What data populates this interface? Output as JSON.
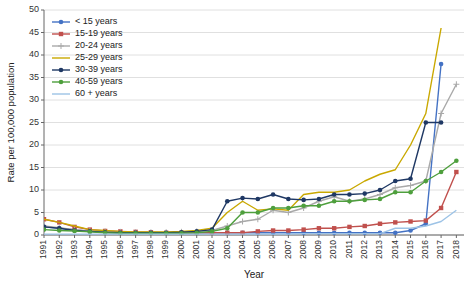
{
  "chart_data": {
    "type": "line",
    "x": [
      1991,
      1992,
      1993,
      1994,
      1995,
      1996,
      1997,
      1998,
      1999,
      2000,
      2001,
      2002,
      2003,
      2004,
      2005,
      2006,
      2007,
      2008,
      2009,
      2010,
      2011,
      2012,
      2013,
      2014,
      2015,
      2016,
      2017,
      2018
    ],
    "series": [
      {
        "name": "< 15 years",
        "color": "#4472C4",
        "marker": "circle",
        "values": [
          1.8,
          1.5,
          1.2,
          0.8,
          0.7,
          0.5,
          0.4,
          0.4,
          0.4,
          0.5,
          0.5,
          0.5,
          0.5,
          0.5,
          0.5,
          0.5,
          0.5,
          0.5,
          0.5,
          0.5,
          0.5,
          0.5,
          0.5,
          0.5,
          1.0,
          2.5,
          38.0,
          null
        ]
      },
      {
        "name": "15-19 years",
        "color": "#C0504D",
        "marker": "square",
        "values": [
          3.5,
          2.8,
          1.8,
          1.2,
          0.9,
          0.8,
          0.7,
          0.6,
          0.5,
          0.5,
          0.5,
          0.5,
          0.5,
          0.5,
          0.8,
          1.0,
          1.0,
          1.2,
          1.5,
          1.5,
          1.8,
          2.0,
          2.5,
          2.8,
          3.0,
          3.2,
          6.0,
          14.0
        ]
      },
      {
        "name": "20-24 years",
        "color": "#A9A9A9",
        "marker": "plus",
        "values": [
          2.0,
          1.6,
          1.2,
          0.9,
          0.8,
          0.7,
          0.6,
          0.6,
          0.6,
          0.7,
          0.8,
          1.0,
          2.0,
          3.0,
          3.5,
          5.5,
          5.0,
          6.0,
          7.5,
          8.5,
          7.5,
          8.0,
          9.0,
          10.5,
          11.0,
          12.0,
          27.0,
          33.5
        ]
      },
      {
        "name": "25-29 years",
        "color": "#C9A800",
        "marker": "none",
        "values": [
          3.5,
          2.8,
          2.0,
          1.2,
          1.0,
          0.8,
          0.7,
          0.7,
          0.7,
          0.8,
          1.0,
          1.5,
          5.0,
          7.5,
          5.5,
          5.8,
          5.5,
          9.0,
          9.5,
          9.5,
          10.0,
          12.0,
          13.5,
          14.5,
          20.0,
          27.0,
          46.0,
          null
        ]
      },
      {
        "name": "30-39 years",
        "color": "#1F3864",
        "marker": "circle",
        "values": [
          1.8,
          1.5,
          1.0,
          0.8,
          0.6,
          0.5,
          0.5,
          0.5,
          0.5,
          0.6,
          0.8,
          1.2,
          7.5,
          8.2,
          8.0,
          9.0,
          8.0,
          7.8,
          8.0,
          9.0,
          9.0,
          9.2,
          10.0,
          12.0,
          12.5,
          25.0,
          25.0,
          null
        ]
      },
      {
        "name": "40-59 years",
        "color": "#4E9F3D",
        "marker": "circle",
        "values": [
          1.2,
          1.0,
          0.9,
          0.7,
          0.5,
          0.4,
          0.4,
          0.4,
          0.4,
          0.4,
          0.5,
          0.8,
          1.5,
          5.0,
          5.0,
          6.0,
          6.0,
          6.5,
          6.5,
          7.5,
          7.5,
          7.8,
          8.0,
          9.5,
          9.5,
          12.0,
          14.0,
          16.5
        ]
      },
      {
        "name": "60 + years",
        "color": "#9DC3E6",
        "marker": "none",
        "values": [
          0.2,
          0.2,
          0.2,
          0.2,
          0.2,
          0.2,
          0.2,
          0.2,
          0.2,
          0.2,
          0.2,
          0.2,
          0.2,
          0.2,
          0.2,
          0.2,
          0.2,
          0.3,
          0.3,
          0.3,
          0.3,
          0.3,
          0.3,
          1.5,
          1.5,
          2.0,
          3.0,
          5.5
        ]
      }
    ],
    "x_label": "Year",
    "y_label": "Rate per 100,000 population",
    "xlim": [
      1991,
      2018.5
    ],
    "xticks": [
      1991,
      1992,
      1993,
      1994,
      1995,
      1996,
      1997,
      1998,
      1999,
      2000,
      2001,
      2002,
      2003,
      2004,
      2005,
      2006,
      2007,
      2008,
      2009,
      2010,
      2011,
      2012,
      2013,
      2014,
      2015,
      2016,
      2017,
      2018
    ],
    "ylim": [
      0,
      50
    ],
    "yticks": [
      0,
      5,
      10,
      15,
      20,
      25,
      30,
      35,
      40,
      45,
      50
    ],
    "grid": true,
    "legend": "upper left"
  }
}
